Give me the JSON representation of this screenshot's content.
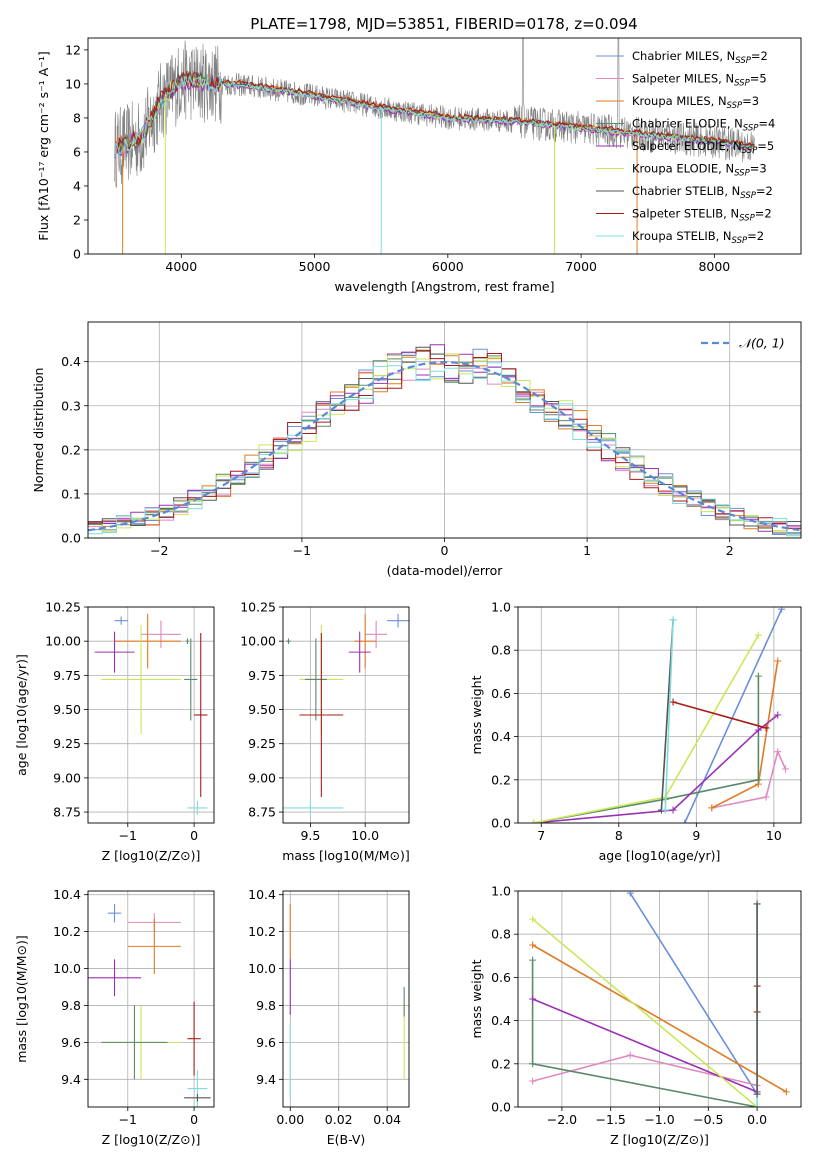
{
  "figure": {
    "title": "PLATE=1798, MJD=53851, FIBERID=0178, z=0.094"
  },
  "chart_data": [
    {
      "id": "spectrum",
      "type": "line",
      "xlabel": "wavelength [Angstrom, rest frame]",
      "ylabel": "Flux [fλ10⁻¹⁷ erg cm⁻² s⁻¹ A⁻¹]",
      "xlim": [
        3300,
        8650
      ],
      "ylim": [
        0,
        12.7
      ],
      "xticks": [
        4000,
        5000,
        6000,
        7000,
        8000
      ],
      "yticks": [
        0,
        2,
        4,
        6,
        8,
        10,
        12
      ],
      "legend": "top-right",
      "series": [
        {
          "name": "Chabrier MILES, N",
          "sub": "SSP",
          "suffix": "=2",
          "color": "#6a8fdb"
        },
        {
          "name": "Salpeter MILES, N",
          "sub": "SSP",
          "suffix": "=5",
          "color": "#e08ac0"
        },
        {
          "name": "Kroupa MILES, N",
          "sub": "SSP",
          "suffix": "=3",
          "color": "#e07b25"
        },
        {
          "name": "Chabrier ELODIE, N",
          "sub": "SSP",
          "suffix": "=4",
          "color": "#5a8a6a"
        },
        {
          "name": "Salpeter ELODIE, N",
          "sub": "SSP",
          "suffix": "=5",
          "color": "#9b30b5"
        },
        {
          "name": "Kroupa ELODIE, N",
          "sub": "SSP",
          "suffix": "=3",
          "color": "#c8e85a"
        },
        {
          "name": "Chabrier STELIB, N",
          "sub": "SSP",
          "suffix": "=2",
          "color": "#555555"
        },
        {
          "name": "Salpeter STELIB, N",
          "sub": "SSP",
          "suffix": "=2",
          "color": "#a81c1c"
        },
        {
          "name": "Kroupa STELIB, N",
          "sub": "SSP",
          "suffix": "=2",
          "color": "#7fdddd"
        }
      ],
      "data_color": "#808080",
      "continuum": {
        "x": [
          3500,
          3700,
          3850,
          4000,
          4200,
          4500,
          5000,
          5500,
          6000,
          6500,
          7000,
          7500,
          8000,
          8300
        ],
        "y": [
          6.2,
          6.8,
          9.0,
          10.2,
          10.1,
          9.9,
          9.3,
          8.6,
          8.0,
          7.8,
          7.4,
          7.0,
          6.6,
          6.3
        ]
      }
    },
    {
      "id": "residuals",
      "type": "step",
      "xlabel": "(data-model)/error",
      "ylabel": "Normed distribution",
      "xlim": [
        -2.5,
        2.5
      ],
      "ylim": [
        0,
        0.49
      ],
      "xticks": [
        -2,
        -1,
        0,
        1,
        2
      ],
      "yticks": [
        0.0,
        0.1,
        0.2,
        0.3,
        0.4
      ],
      "legend": "top-right",
      "reference": {
        "name": "𝒩(0, 1)",
        "color": "#5a8ad6",
        "mu": 0,
        "sigma": 1
      }
    },
    {
      "id": "age_vs_Z",
      "type": "errorbar",
      "xlabel": "Z [log10(Z/Z⊙)]",
      "ylabel": "age  [log10(age/yr)]",
      "xlim": [
        -1.6,
        0.3
      ],
      "ylim": [
        8.67,
        10.25
      ],
      "xticks": [
        -1,
        0
      ],
      "yticks": [
        8.75,
        9.0,
        9.25,
        9.5,
        9.75,
        10.0,
        10.25
      ],
      "points": [
        {
          "x": -1.1,
          "y": 10.15,
          "xe": 0.1,
          "ye": 0.03,
          "color": "#6a8fdb"
        },
        {
          "x": -0.5,
          "y": 10.05,
          "xe": 0.3,
          "ye": 0.1,
          "color": "#e08ac0"
        },
        {
          "x": -0.7,
          "y": 10.0,
          "xe": 0.5,
          "ye": 0.2,
          "color": "#e07b25"
        },
        {
          "x": -0.1,
          "y": 10.0,
          "xe": 0.02,
          "ye": 0.02,
          "color": "#5a8a6a"
        },
        {
          "x": -1.2,
          "y": 9.92,
          "xe": 0.3,
          "ye": 0.15,
          "color": "#9b30b5"
        },
        {
          "x": -0.8,
          "y": 9.72,
          "xe": 0.6,
          "ye": 0.4,
          "color": "#c8e85a"
        },
        {
          "x": -0.05,
          "y": 9.72,
          "xe": 0.1,
          "ye": 0.3,
          "color": "#5a8a6a"
        },
        {
          "x": 0.1,
          "y": 9.46,
          "xe": 0.1,
          "ye": 0.6,
          "color": "#a81c1c"
        },
        {
          "x": 0.05,
          "y": 8.78,
          "xe": 0.15,
          "ye": 0.05,
          "color": "#7fdddd"
        }
      ]
    },
    {
      "id": "age_vs_mass",
      "type": "errorbar",
      "xlabel": "mass [log10(M/M⊙)]",
      "ylabel": "",
      "xlim": [
        9.25,
        10.4
      ],
      "ylim": [
        8.67,
        10.25
      ],
      "xticks": [
        9.5,
        10.0
      ],
      "yticks": [
        8.75,
        9.0,
        9.25,
        9.5,
        9.75,
        10.0,
        10.25
      ],
      "points": [
        {
          "x": 10.3,
          "y": 10.15,
          "xe": 0.1,
          "ye": 0.05,
          "color": "#6a8fdb"
        },
        {
          "x": 10.1,
          "y": 10.05,
          "xe": 0.1,
          "ye": 0.1,
          "color": "#e08ac0"
        },
        {
          "x": 10.0,
          "y": 10.0,
          "xe": 0.1,
          "ye": 0.2,
          "color": "#e07b25"
        },
        {
          "x": 9.3,
          "y": 10.0,
          "xe": 0.02,
          "ye": 0.02,
          "color": "#5a8a6a"
        },
        {
          "x": 9.95,
          "y": 9.92,
          "xe": 0.1,
          "ye": 0.15,
          "color": "#9b30b5"
        },
        {
          "x": 9.6,
          "y": 9.72,
          "xe": 0.2,
          "ye": 0.4,
          "color": "#c8e85a"
        },
        {
          "x": 9.55,
          "y": 9.72,
          "xe": 0.1,
          "ye": 0.3,
          "color": "#5a8a6a"
        },
        {
          "x": 9.6,
          "y": 9.46,
          "xe": 0.2,
          "ye": 0.6,
          "color": "#a81c1c"
        },
        {
          "x": 9.5,
          "y": 8.78,
          "xe": 0.3,
          "ye": 0.05,
          "color": "#7fdddd"
        }
      ]
    },
    {
      "id": "weight_vs_age",
      "type": "line",
      "xlabel": "age  [log10(age/yr)]",
      "ylabel": "mass weight",
      "xlim": [
        6.7,
        10.35
      ],
      "ylim": [
        0,
        1
      ],
      "xticks": [
        7,
        8,
        9,
        10
      ],
      "yticks": [
        0.0,
        0.2,
        0.4,
        0.6,
        0.8,
        1.0
      ],
      "series": [
        {
          "color": "#6a8fdb",
          "x": [
            8.85,
            10.1
          ],
          "y": [
            0.0,
            0.99
          ]
        },
        {
          "color": "#e08ac0",
          "x": [
            9.2,
            9.9,
            10.05,
            10.15
          ],
          "y": [
            0.07,
            0.12,
            0.33,
            0.25
          ]
        },
        {
          "color": "#e07b25",
          "x": [
            9.2,
            9.8,
            10.05
          ],
          "y": [
            0.07,
            0.18,
            0.75
          ]
        },
        {
          "color": "#5a8a6a",
          "x": [
            6.9,
            8.6,
            9.8,
            9.8
          ],
          "y": [
            0.0,
            0.11,
            0.2,
            0.68
          ]
        },
        {
          "color": "#9b30b5",
          "x": [
            6.9,
            8.7,
            9.8,
            10.05
          ],
          "y": [
            0.0,
            0.06,
            0.43,
            0.5
          ]
        },
        {
          "color": "#c8e85a",
          "x": [
            6.9,
            8.6,
            9.8
          ],
          "y": [
            0.0,
            0.12,
            0.87
          ]
        },
        {
          "color": "#555555",
          "x": [
            8.55,
            8.7
          ],
          "y": [
            0.06,
            0.94
          ]
        },
        {
          "color": "#a81c1c",
          "x": [
            8.7,
            9.9
          ],
          "y": [
            0.56,
            0.44
          ]
        },
        {
          "color": "#7fdddd",
          "x": [
            8.6,
            8.7
          ],
          "y": [
            0.06,
            0.94
          ]
        }
      ]
    },
    {
      "id": "mass_vs_Z",
      "type": "errorbar",
      "xlabel": "Z [log10(Z/Z⊙)]",
      "ylabel": "mass [log10(M/M⊙)]",
      "xlim": [
        -1.6,
        0.3
      ],
      "ylim": [
        9.25,
        10.42
      ],
      "xticks": [
        -1,
        0
      ],
      "yticks": [
        9.4,
        9.6,
        9.8,
        10.0,
        10.2,
        10.4
      ],
      "points": [
        {
          "x": -1.2,
          "y": 10.3,
          "xe": 0.1,
          "ye": 0.05,
          "color": "#6a8fdb"
        },
        {
          "x": -0.6,
          "y": 10.25,
          "xe": 0.4,
          "ye": 0.05,
          "color": "#e08ac0"
        },
        {
          "x": -0.6,
          "y": 10.12,
          "xe": 0.4,
          "ye": 0.15,
          "color": "#e07b25"
        },
        {
          "x": -1.2,
          "y": 9.95,
          "xe": 0.4,
          "ye": 0.1,
          "color": "#9b30b5"
        },
        {
          "x": -0.8,
          "y": 9.6,
          "xe": 0.6,
          "ye": 0.2,
          "color": "#c8e85a"
        },
        {
          "x": -0.9,
          "y": 9.6,
          "xe": 0.5,
          "ye": 0.2,
          "color": "#5a8a6a"
        },
        {
          "x": 0.0,
          "y": 9.62,
          "xe": 0.1,
          "ye": 0.2,
          "color": "#a81c1c"
        },
        {
          "x": 0.05,
          "y": 9.35,
          "xe": 0.15,
          "ye": 0.1,
          "color": "#7fdddd"
        },
        {
          "x": 0.05,
          "y": 9.3,
          "xe": 0.2,
          "ye": 0.02,
          "color": "#555555"
        }
      ]
    },
    {
      "id": "mass_vs_EBV",
      "type": "errorbar",
      "xlabel": "E(B-V)",
      "ylabel": "",
      "xlim": [
        -0.003,
        0.049
      ],
      "ylim": [
        9.25,
        10.42
      ],
      "xticks": [
        0.0,
        0.02,
        0.04
      ],
      "yticks": [
        9.4,
        9.6,
        9.8,
        10.0,
        10.2,
        10.4
      ],
      "points": [
        {
          "x": 0.0,
          "y": 10.2,
          "xe": 0.0,
          "ye": 0.15,
          "color": "#e07b25"
        },
        {
          "x": 0.0,
          "y": 9.9,
          "xe": 0.0,
          "ye": 0.15,
          "color": "#9b30b5"
        },
        {
          "x": 0.0,
          "y": 9.5,
          "xe": 0.0,
          "ye": 0.2,
          "color": "#7fdddd"
        },
        {
          "x": 0.047,
          "y": 9.6,
          "xe": 0.0,
          "ye": 0.2,
          "color": "#c8e85a"
        },
        {
          "x": 0.047,
          "y": 9.82,
          "xe": 0.0,
          "ye": 0.08,
          "color": "#5a8a6a"
        }
      ]
    },
    {
      "id": "weight_vs_Z",
      "type": "line",
      "xlabel": "Z [log10(Z/Z⊙)]",
      "ylabel": "mass weight",
      "xlim": [
        -2.45,
        0.45
      ],
      "ylim": [
        0,
        1
      ],
      "xticks": [
        -2.0,
        -1.5,
        -1.0,
        -0.5,
        0.0
      ],
      "yticks": [
        0.0,
        0.2,
        0.4,
        0.6,
        0.8,
        1.0
      ],
      "series": [
        {
          "color": "#6a8fdb",
          "x": [
            -1.3,
            0.0
          ],
          "y": [
            0.99,
            0.06
          ]
        },
        {
          "color": "#e08ac0",
          "x": [
            -2.3,
            -1.3,
            0.0
          ],
          "y": [
            0.12,
            0.24,
            0.1
          ]
        },
        {
          "color": "#e07b25",
          "x": [
            -2.3,
            0.3
          ],
          "y": [
            0.75,
            0.07
          ]
        },
        {
          "color": "#5a8a6a",
          "x": [
            -2.3,
            -2.3,
            0.0
          ],
          "y": [
            0.68,
            0.2,
            0.0
          ]
        },
        {
          "color": "#9b30b5",
          "x": [
            -2.3,
            0.0
          ],
          "y": [
            0.5,
            0.07
          ]
        },
        {
          "color": "#c8e85a",
          "x": [
            -2.3,
            0.0
          ],
          "y": [
            0.87,
            0.0
          ]
        },
        {
          "color": "#a81c1c",
          "x": [
            0.0,
            0.0
          ],
          "y": [
            0.44,
            0.56
          ]
        },
        {
          "color": "#7fdddd",
          "x": [
            0.0,
            0.0
          ],
          "y": [
            0.0,
            0.94
          ]
        },
        {
          "color": "#555555",
          "x": [
            0.0,
            0.0
          ],
          "y": [
            0.06,
            0.94
          ]
        }
      ]
    }
  ]
}
